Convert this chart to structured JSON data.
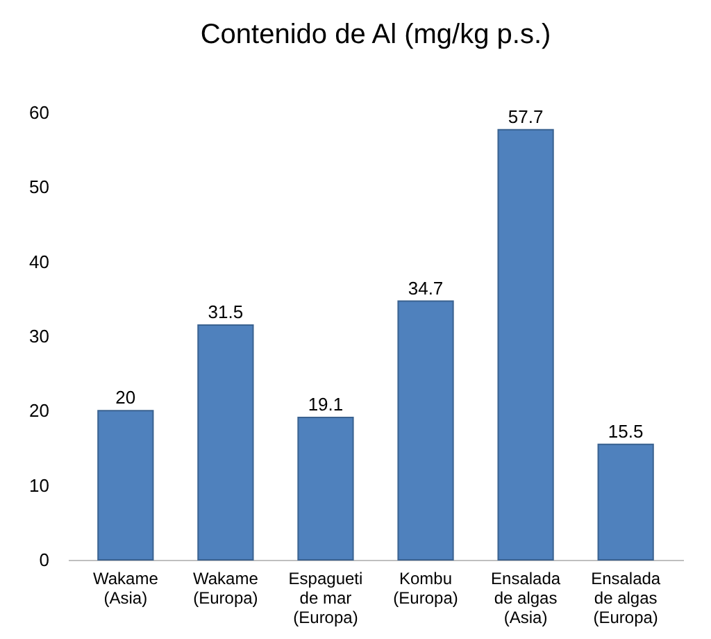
{
  "chart_data": {
    "type": "bar",
    "title": "Contenido de Al (mg/kg p.s.)",
    "categories": [
      "Wakame\n(Asia)",
      "Wakame\n(Europa)",
      "Espagueti\nde mar\n(Europa)",
      "Kombu\n(Europa)",
      "Ensalada\nde algas\n(Asia)",
      "Ensalada\nde algas\n(Europa)"
    ],
    "values": [
      20,
      31.5,
      19.1,
      34.7,
      57.7,
      15.5
    ],
    "color": "#4f81bd",
    "ylim": [
      0,
      60
    ],
    "yticks": [
      0,
      10,
      20,
      30,
      40,
      50,
      60
    ],
    "grid": false,
    "data_labels": true
  }
}
